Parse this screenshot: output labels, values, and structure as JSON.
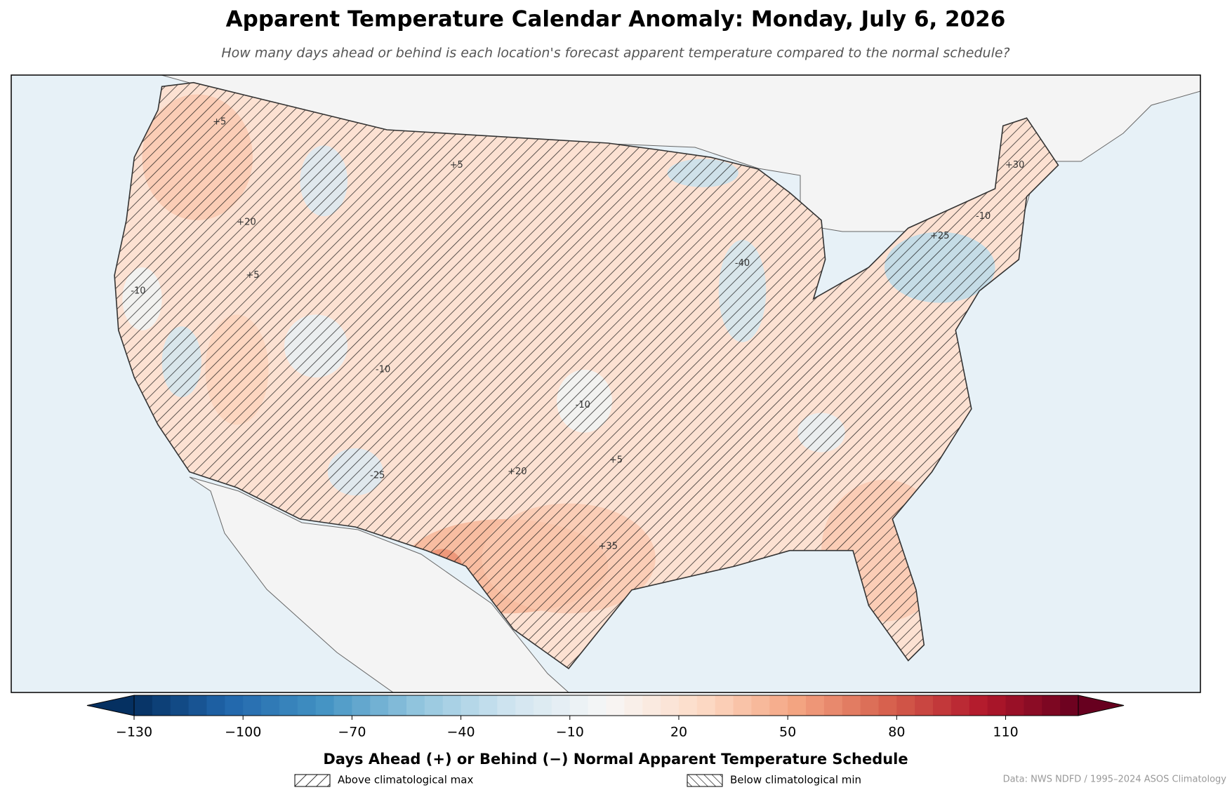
{
  "title": "Apparent Temperature Calendar Anomaly: Monday, July 6, 2026",
  "subtitle": "How many days ahead or behind is each location's forecast apparent temperature compared to the normal schedule?",
  "map": {
    "contour_labels": [
      "+5",
      "+20",
      "+5",
      "-10",
      "+5",
      "-10",
      "-40",
      "-25",
      "+25",
      "+35",
      "+30",
      "-10",
      "+5",
      "-10",
      "+20"
    ]
  },
  "colorbar": {
    "label": "Days Ahead (+) or Behind (−) Normal Apparent Temperature Schedule",
    "lim": [
      -130,
      130
    ],
    "ticks": [
      {
        "value": -130,
        "label": "−130"
      },
      {
        "value": -100,
        "label": "−100"
      },
      {
        "value": -70,
        "label": "−70"
      },
      {
        "value": -40,
        "label": "−40"
      },
      {
        "value": -10,
        "label": "−10"
      },
      20,
      50,
      80,
      110
    ],
    "colors": [
      "#053061",
      "#2166ac",
      "#4393c3",
      "#92c5de",
      "#d1e5f0",
      "#f7f7f7",
      "#fddbc7",
      "#f4a582",
      "#d6604d",
      "#b2182b",
      "#67001f"
    ]
  },
  "legend": {
    "entries": [
      {
        "label": "Above climatological max",
        "hatch": "/"
      },
      {
        "label": "Below climatological min",
        "hatch": "\\"
      }
    ]
  },
  "source": "Data: NWS NDFD / 1995–2024 ASOS Climatology"
}
